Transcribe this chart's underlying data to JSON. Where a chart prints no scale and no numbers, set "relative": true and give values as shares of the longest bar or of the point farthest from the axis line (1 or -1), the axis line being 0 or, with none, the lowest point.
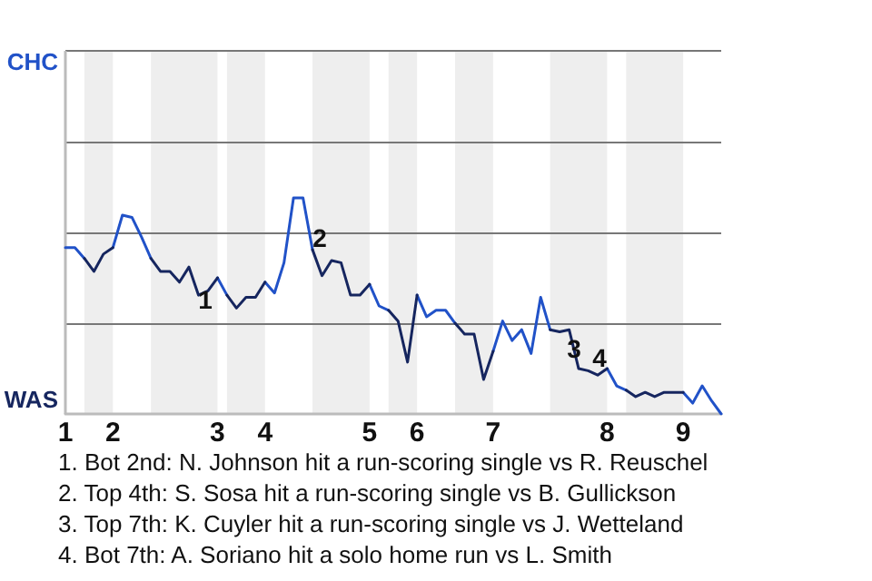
{
  "chart_data": {
    "type": "line",
    "relative": true,
    "categories": [
      "1",
      null,
      null,
      null,
      null,
      "2",
      null,
      null,
      null,
      null,
      null,
      null,
      null,
      null,
      null,
      null,
      "3",
      null,
      null,
      null,
      null,
      "4",
      null,
      null,
      null,
      null,
      null,
      null,
      null,
      null,
      null,
      null,
      "5",
      null,
      null,
      null,
      null,
      "6",
      null,
      null,
      null,
      null,
      null,
      null,
      null,
      "7",
      null,
      null,
      null,
      null,
      null,
      null,
      null,
      null,
      null,
      null,
      null,
      "8",
      null,
      null,
      null,
      null,
      null,
      null,
      null,
      "9",
      null,
      null,
      null,
      null
    ],
    "series": [
      {
        "color": "#2152c8",
        "values": [
          0.77,
          0.77,
          0.72,
          null,
          null,
          0.77,
          0.92,
          0.91,
          0.82,
          0.72,
          null,
          null,
          null,
          null,
          null,
          null,
          0.63,
          0.55,
          null,
          null,
          null,
          0.61,
          0.56,
          0.7,
          1,
          1,
          0.76,
          null,
          null,
          null,
          null,
          null,
          0.6,
          0.5,
          0.48,
          null,
          null,
          0.55,
          0.45,
          0.48,
          0.48,
          0.42,
          null,
          null,
          null,
          0.29,
          0.43,
          0.34,
          0.39,
          0.28,
          0.54,
          0.39,
          null,
          null,
          null,
          null,
          null,
          0.21,
          0.13,
          0.11,
          null,
          null,
          null,
          null,
          null,
          0.1,
          0.05,
          0.13,
          0.06,
          0
        ]
      },
      {
        "color": "#15255e",
        "values": [
          null,
          null,
          0.72,
          0.66,
          0.74,
          0.77,
          null,
          null,
          null,
          null,
          null,
          null,
          null,
          null,
          null,
          null,
          null,
          0.55,
          0.49,
          0.54,
          0.54,
          0.61,
          null,
          null,
          null,
          null,
          null,
          null,
          null,
          null,
          null,
          null,
          null,
          null,
          0.48,
          0.43,
          0.24,
          0.55,
          null,
          null,
          null,
          null,
          null,
          null,
          null,
          null,
          null,
          null,
          null,
          null,
          null,
          0.39,
          0.38,
          0.39,
          0.21,
          0.2,
          0.18,
          0.21,
          null,
          null,
          null,
          null,
          null,
          null,
          null,
          null,
          null,
          null,
          null,
          null
        ]
      },
      {
        "color": "#16265f",
        "values": [
          null,
          null,
          null,
          null,
          null,
          null,
          null,
          null,
          null,
          0.72,
          0.66,
          0.66,
          0.61,
          0.68,
          0.55,
          0.57,
          0.63,
          null,
          null,
          null,
          null,
          null,
          null,
          null,
          null,
          null,
          0.76,
          0.64,
          0.71,
          0.7,
          0.55,
          0.55,
          0.6,
          null,
          null,
          null,
          null,
          null,
          null,
          null,
          null,
          0.42,
          0.37,
          0.37,
          0.16,
          0.29,
          null,
          null,
          null,
          null,
          null,
          null,
          null,
          null,
          null,
          null,
          null,
          null,
          null,
          0.11,
          0.08,
          0.1,
          0.08,
          0.1,
          0.1,
          0.1,
          null,
          null,
          null,
          null
        ]
      }
    ],
    "annotations": [
      "CHC",
      "WAS",
      "1",
      "2",
      "3",
      "4",
      "1. Bot 2nd: N. Johnson hit a run-scoring single vs R. Reuschel",
      "2. Top 4th: S. Sosa hit a run-scoring single vs B. Gullickson",
      "3. Top 7th: K. Cuyler hit a run-scoring single vs J. Wetteland",
      "4. Bot 7th: A. Soriano hit a solo home run vs L. Smith"
    ],
    "ref_lines": [
      {
        "axis": "y",
        "value": 0.42,
        "color": "#777777"
      },
      {
        "axis": "y",
        "value": 0.84,
        "color": "#777777"
      },
      {
        "axis": "y",
        "value": 1.26,
        "color": "#777777"
      }
    ],
    "marker": "none",
    "line_style": "solid"
  }
}
